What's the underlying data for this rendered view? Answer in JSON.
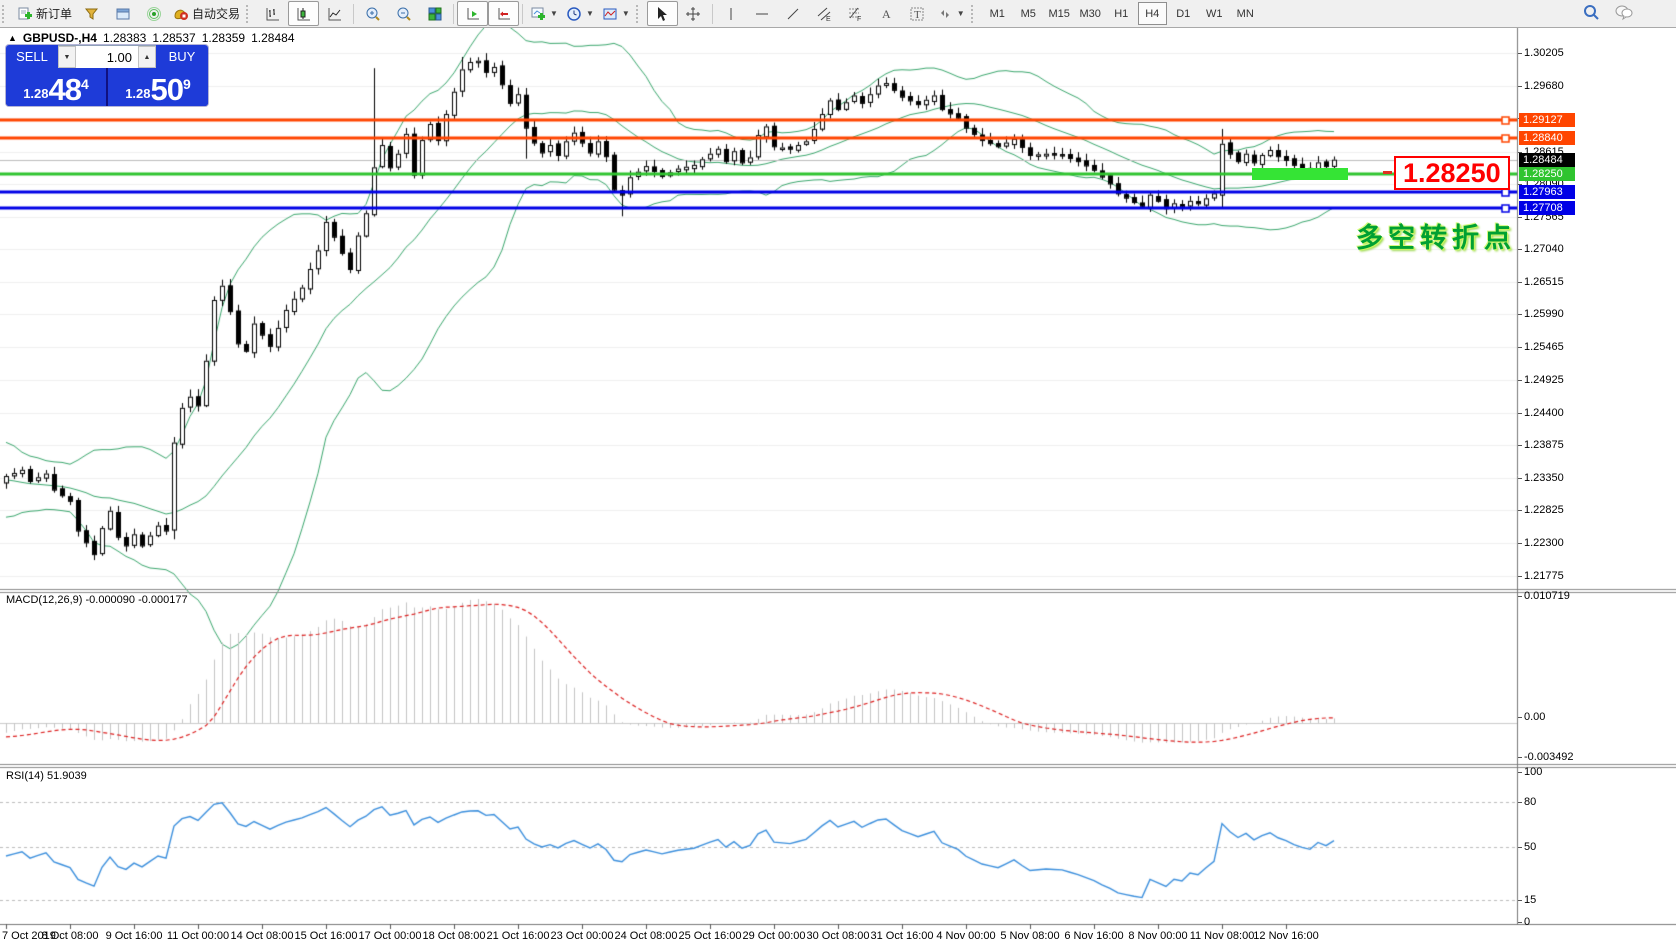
{
  "toolbar": {
    "new_order_label": "新订单",
    "autotrading_label": "自动交易",
    "timeframes": [
      {
        "label": "M1"
      },
      {
        "label": "M5"
      },
      {
        "label": "M15"
      },
      {
        "label": "M30"
      },
      {
        "label": "H1"
      },
      {
        "label": "H4",
        "active": true
      },
      {
        "label": "D1"
      },
      {
        "label": "W1"
      },
      {
        "label": "MN"
      }
    ]
  },
  "symbol_bar": {
    "symbol": "GBPUSD-,H4",
    "open": "1.28383",
    "high": "1.28537",
    "low": "1.28359",
    "close": "1.28484"
  },
  "trade_panel": {
    "sell_label": "SELL",
    "buy_label": "BUY",
    "volume": "1.00",
    "sell_price_prefix": "1.28",
    "sell_price_big": "48",
    "sell_price_sup": "4",
    "buy_price_prefix": "1.28",
    "buy_price_big": "50",
    "buy_price_sup": "9"
  },
  "chart_data": {
    "type": "candlestick",
    "symbol": "GBPUSD-",
    "timeframe": "H4",
    "current_bar_ohlc": [
      1.28383,
      1.28537,
      1.28359,
      1.28484
    ],
    "bid_price": 1.28484,
    "bid_label": "1.28484",
    "price_axis_ticks": [
      "1.30205",
      "1.29680",
      "1.29155",
      "1.28615",
      "1.28090",
      "1.27565",
      "1.27040",
      "1.26515",
      "1.25990",
      "1.25465",
      "1.24925",
      "1.24400",
      "1.23875",
      "1.23350",
      "1.22825",
      "1.22300",
      "1.21775"
    ],
    "time_axis_labels": [
      "7 Oct 2019",
      "8 Oct 08:00",
      "9 Oct 16:00",
      "11 Oct 00:00",
      "14 Oct 08:00",
      "15 Oct 16:00",
      "17 Oct 00:00",
      "18 Oct 08:00",
      "21 Oct 16:00",
      "23 Oct 00:00",
      "24 Oct 08:00",
      "25 Oct 16:00",
      "29 Oct 00:00",
      "30 Oct 08:00",
      "31 Oct 16:00",
      "4 Nov 00:00",
      "5 Nov 08:00",
      "6 Nov 16:00",
      "8 Nov 00:00",
      "11 Nov 08:00",
      "12 Nov 16:00"
    ],
    "hlines": [
      {
        "price": 1.29127,
        "label": "1.29127",
        "color": "#ff4500"
      },
      {
        "price": 1.2884,
        "label": "1.28840",
        "color": "#ff4500"
      },
      {
        "price": 1.2825,
        "label": "1.28250",
        "color": "#2fc42f"
      },
      {
        "price": 1.27963,
        "label": "1.27963",
        "color": "#0000e6"
      },
      {
        "price": 1.27708,
        "label": "1.27708",
        "color": "#0000e6"
      }
    ],
    "highlight_zone": {
      "from_bar": 156,
      "to_bar": 168,
      "price": 1.2825
    },
    "callout": {
      "text": "1.28250",
      "color": "#ff0000"
    },
    "annotation": {
      "text": "多空转折点",
      "color": "#00a032"
    },
    "bollinger": {
      "period": 20,
      "deviation": 2,
      "color": "#3aa76d"
    },
    "bars_total": 167,
    "price_path": [
      [
        0,
        1.2338
      ],
      [
        2,
        1.2348
      ],
      [
        3,
        1.233
      ],
      [
        5,
        1.2342
      ],
      [
        6,
        1.2316
      ],
      [
        8,
        1.2298
      ],
      [
        9,
        1.225
      ],
      [
        11,
        1.2212
      ],
      [
        12,
        1.2254
      ],
      [
        13,
        1.2282
      ],
      [
        14,
        1.224
      ],
      [
        15,
        1.2226
      ],
      [
        16,
        1.2244
      ],
      [
        17,
        1.2226
      ],
      [
        19,
        1.2258
      ],
      [
        20,
        1.225
      ],
      [
        21,
        1.2392
      ],
      [
        22,
        1.2448
      ],
      [
        23,
        1.2466
      ],
      [
        24,
        1.2452
      ],
      [
        25,
        1.2524
      ],
      [
        26,
        1.2622
      ],
      [
        27,
        1.2645
      ],
      [
        28,
        1.2604
      ],
      [
        29,
        1.2552
      ],
      [
        30,
        1.254
      ],
      [
        31,
        1.2584
      ],
      [
        33,
        1.2548
      ],
      [
        35,
        1.2606
      ],
      [
        37,
        1.2642
      ],
      [
        39,
        1.2702
      ],
      [
        40,
        1.2748
      ],
      [
        41,
        1.2724
      ],
      [
        43,
        1.2672
      ],
      [
        44,
        1.2726
      ],
      [
        45,
        1.2762
      ],
      [
        46,
        1.2836
      ],
      [
        47,
        1.2872
      ],
      [
        48,
        1.2836
      ],
      [
        49,
        1.2858
      ],
      [
        50,
        1.289
      ],
      [
        51,
        1.2824
      ],
      [
        52,
        1.288
      ],
      [
        53,
        1.2906
      ],
      [
        54,
        1.288
      ],
      [
        55,
        1.2922
      ],
      [
        56,
        1.2958
      ],
      [
        57,
        1.2994
      ],
      [
        58,
        1.3006
      ],
      [
        59,
        1.3008
      ],
      [
        60,
        1.299
      ],
      [
        61,
        1.2998
      ],
      [
        62,
        1.297
      ],
      [
        63,
        1.294
      ],
      [
        64,
        1.2954
      ],
      [
        65,
        1.29
      ],
      [
        66,
        1.2876
      ],
      [
        67,
        1.286
      ],
      [
        68,
        1.2872
      ],
      [
        69,
        1.2856
      ],
      [
        70,
        1.2878
      ],
      [
        71,
        1.2892
      ],
      [
        73,
        1.286
      ],
      [
        74,
        1.2878
      ],
      [
        75,
        1.2854
      ],
      [
        76,
        1.28
      ],
      [
        77,
        1.2792
      ],
      [
        78,
        1.282
      ],
      [
        80,
        1.2838
      ],
      [
        82,
        1.2822
      ],
      [
        84,
        1.2834
      ],
      [
        86,
        1.284
      ],
      [
        88,
        1.2858
      ],
      [
        89,
        1.2866
      ],
      [
        90,
        1.2846
      ],
      [
        91,
        1.2862
      ],
      [
        92,
        1.2844
      ],
      [
        93,
        1.2852
      ],
      [
        94,
        1.2888
      ],
      [
        95,
        1.2902
      ],
      [
        96,
        1.287
      ],
      [
        98,
        1.2866
      ],
      [
        100,
        1.2878
      ],
      [
        101,
        1.2898
      ],
      [
        102,
        1.2922
      ],
      [
        103,
        1.2944
      ],
      [
        104,
        1.293
      ],
      [
        106,
        1.2952
      ],
      [
        107,
        1.294
      ],
      [
        109,
        1.2968
      ],
      [
        110,
        1.2972
      ],
      [
        112,
        1.295
      ],
      [
        114,
        1.2938
      ],
      [
        116,
        1.2952
      ],
      [
        117,
        1.293
      ],
      [
        119,
        1.2916
      ],
      [
        120,
        1.29
      ],
      [
        122,
        1.288
      ],
      [
        124,
        1.287
      ],
      [
        126,
        1.2882
      ],
      [
        128,
        1.2856
      ],
      [
        130,
        1.2858
      ],
      [
        132,
        1.2856
      ],
      [
        134,
        1.2846
      ],
      [
        136,
        1.2832
      ],
      [
        138,
        1.281
      ],
      [
        139,
        1.2794
      ],
      [
        141,
        1.278
      ],
      [
        142,
        1.2774
      ],
      [
        143,
        1.2792
      ],
      [
        144,
        1.2782
      ],
      [
        145,
        1.277
      ],
      [
        146,
        1.2778
      ],
      [
        147,
        1.2773
      ],
      [
        148,
        1.2782
      ],
      [
        149,
        1.2778
      ],
      [
        150,
        1.2786
      ],
      [
        151,
        1.2794
      ],
      [
        152,
        1.2874
      ],
      [
        153,
        1.2858
      ],
      [
        154,
        1.2846
      ],
      [
        155,
        1.2858
      ],
      [
        156,
        1.2844
      ],
      [
        157,
        1.2856
      ],
      [
        158,
        1.2864
      ],
      [
        159,
        1.2854
      ],
      [
        160,
        1.2848
      ],
      [
        161,
        1.284
      ],
      [
        162,
        1.2834
      ],
      [
        163,
        1.283
      ],
      [
        164,
        1.2844
      ],
      [
        165,
        1.2838
      ],
      [
        166,
        1.28484
      ]
    ],
    "spikes": [
      {
        "bar": 11,
        "low": 1.2204
      },
      {
        "bar": 21,
        "low": 1.2236
      },
      {
        "bar": 46,
        "high": 1.2996,
        "low": 1.2764
      },
      {
        "bar": 57,
        "high": 1.3014
      },
      {
        "bar": 65,
        "high": 1.2964,
        "low": 1.285
      },
      {
        "bar": 77,
        "low": 1.2757
      },
      {
        "bar": 152,
        "high": 1.2898,
        "low": 1.277
      }
    ],
    "macd": {
      "label": "MACD(12,26,9)",
      "values": "-0.000090 -0.000177",
      "axis": [
        "0.010719",
        "0.00",
        "-0.003492"
      ],
      "histogram_color": "#c4c4c4",
      "signal_color": "#dd2222"
    },
    "rsi": {
      "label": "RSI(14)",
      "value": "51.9039",
      "axis": [
        "100",
        "80",
        "50",
        "15",
        "0"
      ],
      "levels": [
        80,
        50,
        15
      ],
      "line_color": "#3b8fdd"
    }
  }
}
